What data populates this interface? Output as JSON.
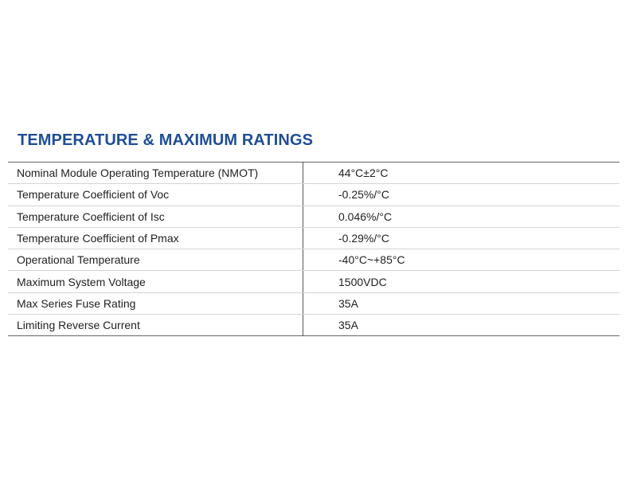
{
  "title": "TEMPERATURE & MAXIMUM RATINGS",
  "accent_color": "#1f4e97",
  "rows": [
    {
      "label": "Nominal Module Operating Temperature (NMOT)",
      "value": "44°C±2°C"
    },
    {
      "label": "Temperature Coefficient of Voc",
      "value": "-0.25%/°C"
    },
    {
      "label": "Temperature Coefficient of Isc",
      "value": "0.046%/°C"
    },
    {
      "label": "Temperature Coefficient of Pmax",
      "value": "-0.29%/°C"
    },
    {
      "label": "Operational Temperature",
      "value": "-40°C~+85°C"
    },
    {
      "label": "Maximum System Voltage",
      "value": "1500VDC"
    },
    {
      "label": "Max Series Fuse Rating",
      "value": "35A"
    },
    {
      "label": "Limiting Reverse Current",
      "value": "35A"
    }
  ]
}
